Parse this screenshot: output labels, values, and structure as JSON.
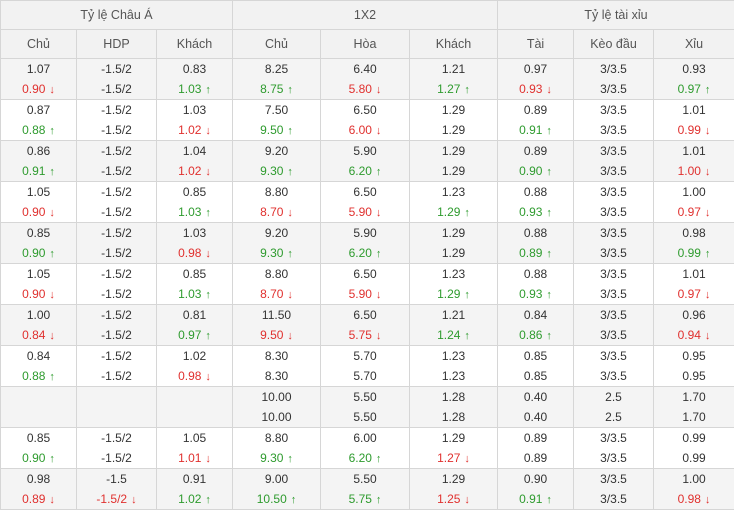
{
  "headers": {
    "groups": [
      "Tỷ lệ Châu Á",
      "1X2",
      "Tỷ lệ tài xỉu"
    ],
    "columns": [
      "Chủ",
      "HDP",
      "Khách",
      "Chủ",
      "Hòa",
      "Khách",
      "Tài",
      "Kèo đầu",
      "Xỉu"
    ]
  },
  "colors": {
    "up": "#2e9b2e",
    "down": "#e0302e",
    "header_bg": "#f2f2f2",
    "alt_row_bg": "#f4f4f4"
  },
  "rows": [
    [
      [
        {
          "v": "1.07",
          "t": ""
        },
        {
          "v": "0.90",
          "t": "down"
        }
      ],
      [
        {
          "v": "-1.5/2",
          "t": ""
        },
        {
          "v": "-1.5/2",
          "t": ""
        }
      ],
      [
        {
          "v": "0.83",
          "t": ""
        },
        {
          "v": "1.03",
          "t": "up"
        }
      ],
      [
        {
          "v": "8.25",
          "t": ""
        },
        {
          "v": "8.75",
          "t": "up"
        }
      ],
      [
        {
          "v": "6.40",
          "t": ""
        },
        {
          "v": "5.80",
          "t": "down"
        }
      ],
      [
        {
          "v": "1.21",
          "t": ""
        },
        {
          "v": "1.27",
          "t": "up"
        }
      ],
      [
        {
          "v": "0.97",
          "t": ""
        },
        {
          "v": "0.93",
          "t": "down"
        }
      ],
      [
        {
          "v": "3/3.5",
          "t": ""
        },
        {
          "v": "3/3.5",
          "t": ""
        }
      ],
      [
        {
          "v": "0.93",
          "t": ""
        },
        {
          "v": "0.97",
          "t": "up"
        }
      ]
    ],
    [
      [
        {
          "v": "0.87",
          "t": ""
        },
        {
          "v": "0.88",
          "t": "up"
        }
      ],
      [
        {
          "v": "-1.5/2",
          "t": ""
        },
        {
          "v": "-1.5/2",
          "t": ""
        }
      ],
      [
        {
          "v": "1.03",
          "t": ""
        },
        {
          "v": "1.02",
          "t": "down"
        }
      ],
      [
        {
          "v": "7.50",
          "t": ""
        },
        {
          "v": "9.50",
          "t": "up"
        }
      ],
      [
        {
          "v": "6.50",
          "t": ""
        },
        {
          "v": "6.00",
          "t": "down"
        }
      ],
      [
        {
          "v": "1.29",
          "t": ""
        },
        {
          "v": "1.29",
          "t": ""
        }
      ],
      [
        {
          "v": "0.89",
          "t": ""
        },
        {
          "v": "0.91",
          "t": "up"
        }
      ],
      [
        {
          "v": "3/3.5",
          "t": ""
        },
        {
          "v": "3/3.5",
          "t": ""
        }
      ],
      [
        {
          "v": "1.01",
          "t": ""
        },
        {
          "v": "0.99",
          "t": "down"
        }
      ]
    ],
    [
      [
        {
          "v": "0.86",
          "t": ""
        },
        {
          "v": "0.91",
          "t": "up"
        }
      ],
      [
        {
          "v": "-1.5/2",
          "t": ""
        },
        {
          "v": "-1.5/2",
          "t": ""
        }
      ],
      [
        {
          "v": "1.04",
          "t": ""
        },
        {
          "v": "1.02",
          "t": "down"
        }
      ],
      [
        {
          "v": "9.20",
          "t": ""
        },
        {
          "v": "9.30",
          "t": "up"
        }
      ],
      [
        {
          "v": "5.90",
          "t": ""
        },
        {
          "v": "6.20",
          "t": "up"
        }
      ],
      [
        {
          "v": "1.29",
          "t": ""
        },
        {
          "v": "1.29",
          "t": ""
        }
      ],
      [
        {
          "v": "0.89",
          "t": ""
        },
        {
          "v": "0.90",
          "t": "up"
        }
      ],
      [
        {
          "v": "3/3.5",
          "t": ""
        },
        {
          "v": "3/3.5",
          "t": ""
        }
      ],
      [
        {
          "v": "1.01",
          "t": ""
        },
        {
          "v": "1.00",
          "t": "down"
        }
      ]
    ],
    [
      [
        {
          "v": "1.05",
          "t": ""
        },
        {
          "v": "0.90",
          "t": "down"
        }
      ],
      [
        {
          "v": "-1.5/2",
          "t": ""
        },
        {
          "v": "-1.5/2",
          "t": ""
        }
      ],
      [
        {
          "v": "0.85",
          "t": ""
        },
        {
          "v": "1.03",
          "t": "up"
        }
      ],
      [
        {
          "v": "8.80",
          "t": ""
        },
        {
          "v": "8.70",
          "t": "down"
        }
      ],
      [
        {
          "v": "6.50",
          "t": ""
        },
        {
          "v": "5.90",
          "t": "down"
        }
      ],
      [
        {
          "v": "1.23",
          "t": ""
        },
        {
          "v": "1.29",
          "t": "up"
        }
      ],
      [
        {
          "v": "0.88",
          "t": ""
        },
        {
          "v": "0.93",
          "t": "up"
        }
      ],
      [
        {
          "v": "3/3.5",
          "t": ""
        },
        {
          "v": "3/3.5",
          "t": ""
        }
      ],
      [
        {
          "v": "1.00",
          "t": ""
        },
        {
          "v": "0.97",
          "t": "down"
        }
      ]
    ],
    [
      [
        {
          "v": "0.85",
          "t": ""
        },
        {
          "v": "0.90",
          "t": "up"
        }
      ],
      [
        {
          "v": "-1.5/2",
          "t": ""
        },
        {
          "v": "-1.5/2",
          "t": ""
        }
      ],
      [
        {
          "v": "1.03",
          "t": ""
        },
        {
          "v": "0.98",
          "t": "down"
        }
      ],
      [
        {
          "v": "9.20",
          "t": ""
        },
        {
          "v": "9.30",
          "t": "up"
        }
      ],
      [
        {
          "v": "5.90",
          "t": ""
        },
        {
          "v": "6.20",
          "t": "up"
        }
      ],
      [
        {
          "v": "1.29",
          "t": ""
        },
        {
          "v": "1.29",
          "t": ""
        }
      ],
      [
        {
          "v": "0.88",
          "t": ""
        },
        {
          "v": "0.89",
          "t": "up"
        }
      ],
      [
        {
          "v": "3/3.5",
          "t": ""
        },
        {
          "v": "3/3.5",
          "t": ""
        }
      ],
      [
        {
          "v": "0.98",
          "t": ""
        },
        {
          "v": "0.99",
          "t": "up"
        }
      ]
    ],
    [
      [
        {
          "v": "1.05",
          "t": ""
        },
        {
          "v": "0.90",
          "t": "down"
        }
      ],
      [
        {
          "v": "-1.5/2",
          "t": ""
        },
        {
          "v": "-1.5/2",
          "t": ""
        }
      ],
      [
        {
          "v": "0.85",
          "t": ""
        },
        {
          "v": "1.03",
          "t": "up"
        }
      ],
      [
        {
          "v": "8.80",
          "t": ""
        },
        {
          "v": "8.70",
          "t": "down"
        }
      ],
      [
        {
          "v": "6.50",
          "t": ""
        },
        {
          "v": "5.90",
          "t": "down"
        }
      ],
      [
        {
          "v": "1.23",
          "t": ""
        },
        {
          "v": "1.29",
          "t": "up"
        }
      ],
      [
        {
          "v": "0.88",
          "t": ""
        },
        {
          "v": "0.93",
          "t": "up"
        }
      ],
      [
        {
          "v": "3/3.5",
          "t": ""
        },
        {
          "v": "3/3.5",
          "t": ""
        }
      ],
      [
        {
          "v": "1.01",
          "t": ""
        },
        {
          "v": "0.97",
          "t": "down"
        }
      ]
    ],
    [
      [
        {
          "v": "1.00",
          "t": ""
        },
        {
          "v": "0.84",
          "t": "down"
        }
      ],
      [
        {
          "v": "-1.5/2",
          "t": ""
        },
        {
          "v": "-1.5/2",
          "t": ""
        }
      ],
      [
        {
          "v": "0.81",
          "t": ""
        },
        {
          "v": "0.97",
          "t": "up"
        }
      ],
      [
        {
          "v": "11.50",
          "t": ""
        },
        {
          "v": "9.50",
          "t": "down"
        }
      ],
      [
        {
          "v": "6.50",
          "t": ""
        },
        {
          "v": "5.75",
          "t": "down"
        }
      ],
      [
        {
          "v": "1.21",
          "t": ""
        },
        {
          "v": "1.24",
          "t": "up"
        }
      ],
      [
        {
          "v": "0.84",
          "t": ""
        },
        {
          "v": "0.86",
          "t": "up"
        }
      ],
      [
        {
          "v": "3/3.5",
          "t": ""
        },
        {
          "v": "3/3.5",
          "t": ""
        }
      ],
      [
        {
          "v": "0.96",
          "t": ""
        },
        {
          "v": "0.94",
          "t": "down"
        }
      ]
    ],
    [
      [
        {
          "v": "0.84",
          "t": ""
        },
        {
          "v": "0.88",
          "t": "up"
        }
      ],
      [
        {
          "v": "-1.5/2",
          "t": ""
        },
        {
          "v": "-1.5/2",
          "t": ""
        }
      ],
      [
        {
          "v": "1.02",
          "t": ""
        },
        {
          "v": "0.98",
          "t": "down"
        }
      ],
      [
        {
          "v": "8.30",
          "t": ""
        },
        {
          "v": "8.30",
          "t": ""
        }
      ],
      [
        {
          "v": "5.70",
          "t": ""
        },
        {
          "v": "5.70",
          "t": ""
        }
      ],
      [
        {
          "v": "1.23",
          "t": ""
        },
        {
          "v": "1.23",
          "t": ""
        }
      ],
      [
        {
          "v": "0.85",
          "t": ""
        },
        {
          "v": "0.85",
          "t": ""
        }
      ],
      [
        {
          "v": "3/3.5",
          "t": ""
        },
        {
          "v": "3/3.5",
          "t": ""
        }
      ],
      [
        {
          "v": "0.95",
          "t": ""
        },
        {
          "v": "0.95",
          "t": ""
        }
      ]
    ],
    [
      [
        {
          "v": "",
          "t": ""
        },
        {
          "v": "",
          "t": ""
        }
      ],
      [
        {
          "v": "",
          "t": ""
        },
        {
          "v": "",
          "t": ""
        }
      ],
      [
        {
          "v": "",
          "t": ""
        },
        {
          "v": "",
          "t": ""
        }
      ],
      [
        {
          "v": "10.00",
          "t": ""
        },
        {
          "v": "10.00",
          "t": ""
        }
      ],
      [
        {
          "v": "5.50",
          "t": ""
        },
        {
          "v": "5.50",
          "t": ""
        }
      ],
      [
        {
          "v": "1.28",
          "t": ""
        },
        {
          "v": "1.28",
          "t": ""
        }
      ],
      [
        {
          "v": "0.40",
          "t": ""
        },
        {
          "v": "0.40",
          "t": ""
        }
      ],
      [
        {
          "v": "2.5",
          "t": ""
        },
        {
          "v": "2.5",
          "t": ""
        }
      ],
      [
        {
          "v": "1.70",
          "t": ""
        },
        {
          "v": "1.70",
          "t": ""
        }
      ]
    ],
    [
      [
        {
          "v": "0.85",
          "t": ""
        },
        {
          "v": "0.90",
          "t": "up"
        }
      ],
      [
        {
          "v": "-1.5/2",
          "t": ""
        },
        {
          "v": "-1.5/2",
          "t": ""
        }
      ],
      [
        {
          "v": "1.05",
          "t": ""
        },
        {
          "v": "1.01",
          "t": "down"
        }
      ],
      [
        {
          "v": "8.80",
          "t": ""
        },
        {
          "v": "9.30",
          "t": "up"
        }
      ],
      [
        {
          "v": "6.00",
          "t": ""
        },
        {
          "v": "6.20",
          "t": "up"
        }
      ],
      [
        {
          "v": "1.29",
          "t": ""
        },
        {
          "v": "1.27",
          "t": "down"
        }
      ],
      [
        {
          "v": "0.89",
          "t": ""
        },
        {
          "v": "0.89",
          "t": ""
        }
      ],
      [
        {
          "v": "3/3.5",
          "t": ""
        },
        {
          "v": "3/3.5",
          "t": ""
        }
      ],
      [
        {
          "v": "0.99",
          "t": ""
        },
        {
          "v": "0.99",
          "t": ""
        }
      ]
    ],
    [
      [
        {
          "v": "0.98",
          "t": ""
        },
        {
          "v": "0.89",
          "t": "down"
        }
      ],
      [
        {
          "v": "-1.5",
          "t": ""
        },
        {
          "v": "-1.5/2",
          "t": "down"
        }
      ],
      [
        {
          "v": "0.91",
          "t": ""
        },
        {
          "v": "1.02",
          "t": "up"
        }
      ],
      [
        {
          "v": "9.00",
          "t": ""
        },
        {
          "v": "10.50",
          "t": "up"
        }
      ],
      [
        {
          "v": "5.50",
          "t": ""
        },
        {
          "v": "5.75",
          "t": "up"
        }
      ],
      [
        {
          "v": "1.29",
          "t": ""
        },
        {
          "v": "1.25",
          "t": "down"
        }
      ],
      [
        {
          "v": "0.90",
          "t": ""
        },
        {
          "v": "0.91",
          "t": "up"
        }
      ],
      [
        {
          "v": "3/3.5",
          "t": ""
        },
        {
          "v": "3/3.5",
          "t": ""
        }
      ],
      [
        {
          "v": "1.00",
          "t": ""
        },
        {
          "v": "0.98",
          "t": "down"
        }
      ]
    ]
  ]
}
